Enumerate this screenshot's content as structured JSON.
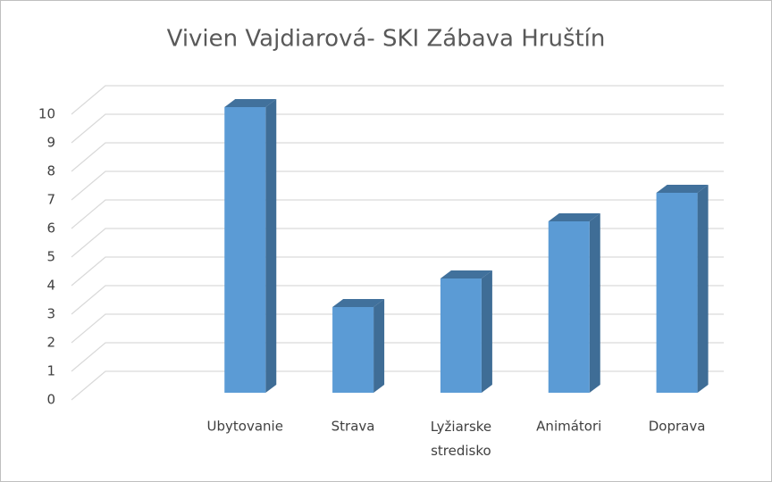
{
  "chart_data": {
    "type": "bar3d",
    "title": "Vivien Vajdiarová- SKI Zábava Hruštín",
    "categories": [
      null,
      "Ubytovanie",
      "Strava",
      "Lyžiarske stredisko",
      "Animátori",
      "Doprava"
    ],
    "values": [
      null,
      10,
      3,
      4,
      6,
      7
    ],
    "color": "#5b9bd5",
    "ylim": [
      0,
      10
    ],
    "yticks": [
      0,
      1,
      2,
      3,
      4,
      5,
      6,
      7,
      8,
      9,
      10
    ],
    "grid": true
  }
}
